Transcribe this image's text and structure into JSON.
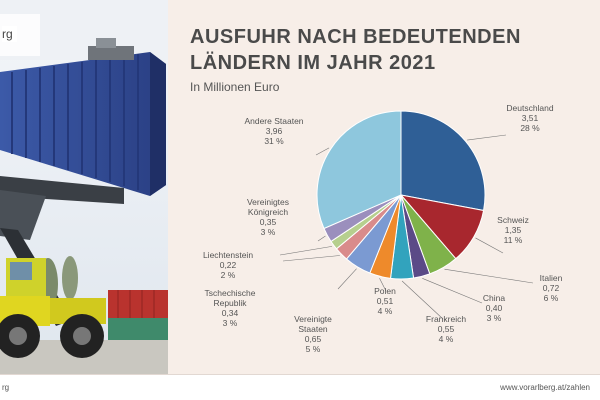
{
  "slide": {
    "title_line1": "AUSFUHR NACH BEDEUTENDEN",
    "title_line2": "LÄNDERN IM JAHR 2021",
    "subtitle": "In Millionen Euro",
    "logo_text": "rg",
    "footer_left": "rg",
    "footer_right": "www.vorarlberg.at/zahlen"
  },
  "chart_data": {
    "type": "pie",
    "title": "AUSFUHR NACH BEDEUTENDEN LÄNDERN IM JAHR 2021",
    "subtitle": "In Millionen Euro",
    "slices": [
      {
        "name": "Deutschland",
        "value_label": "3,51",
        "percent_label": "28 %",
        "value": 3.51,
        "percent": 28,
        "color": "#2f5f96"
      },
      {
        "name": "Schweiz",
        "value_label": "1,35",
        "percent_label": "11 %",
        "value": 1.35,
        "percent": 11,
        "color": "#a8272e"
      },
      {
        "name": "Italien",
        "value_label": "0,72",
        "percent_label": "6 %",
        "value": 0.72,
        "percent": 6,
        "color": "#7fb24a"
      },
      {
        "name": "China",
        "value_label": "0,40",
        "percent_label": "3 %",
        "value": 0.4,
        "percent": 3,
        "color": "#5b4a87"
      },
      {
        "name": "Frankreich",
        "value_label": "0,55",
        "percent_label": "4 %",
        "value": 0.55,
        "percent": 4,
        "color": "#32a3bd"
      },
      {
        "name": "Polen",
        "value_label": "0,51",
        "percent_label": "4 %",
        "value": 0.51,
        "percent": 4,
        "color": "#ee8a2b"
      },
      {
        "name": "Vereinigte Staaten",
        "value_label": "0,65",
        "percent_label": "5 %",
        "value": 0.65,
        "percent": 5,
        "color": "#7b9ad2"
      },
      {
        "name": "Tschechische Republik",
        "value_label": "0,34",
        "percent_label": "3 %",
        "value": 0.34,
        "percent": 3,
        "color": "#d98b8b"
      },
      {
        "name": "Liechtenstein",
        "value_label": "0,22",
        "percent_label": "2 %",
        "value": 0.22,
        "percent": 2,
        "color": "#b6cf8e"
      },
      {
        "name": "Vereinigtes Königreich",
        "value_label": "0,35",
        "percent_label": "3 %",
        "value": 0.35,
        "percent": 3,
        "color": "#9b8fbd"
      },
      {
        "name": "Andere Staaten",
        "value_label": "3,96",
        "percent_label": "31 %",
        "value": 3.96,
        "percent": 31,
        "color": "#8ec7dd"
      }
    ]
  }
}
